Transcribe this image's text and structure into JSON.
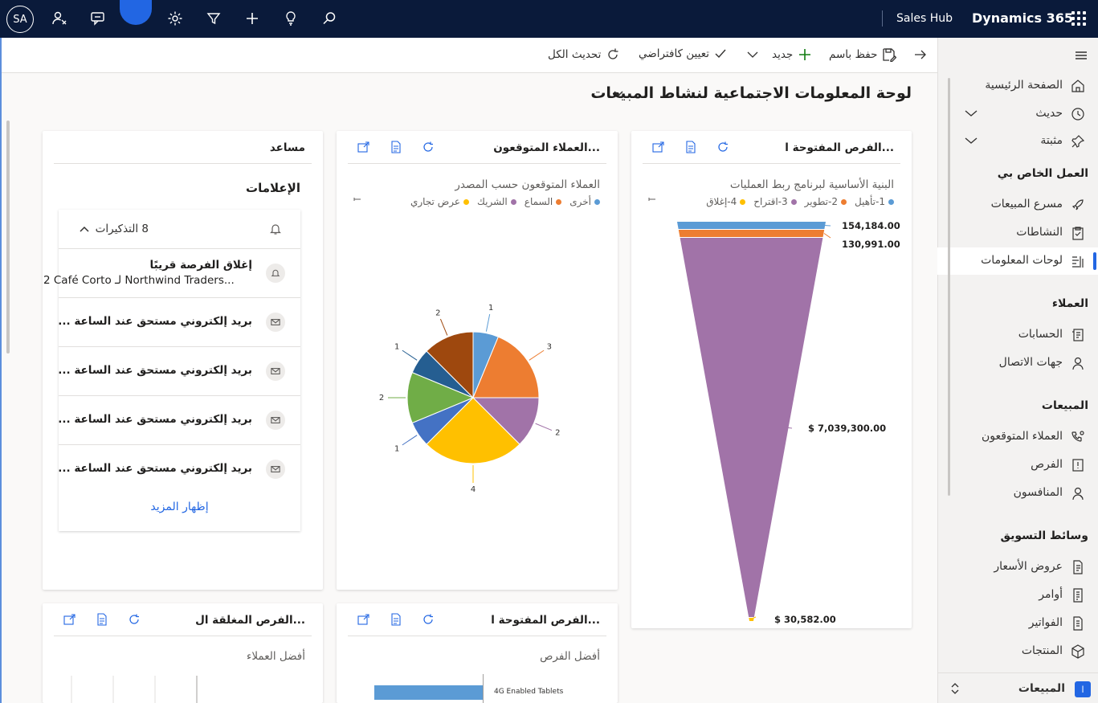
{
  "topbar": {
    "avatar": "SA",
    "app_name": "Sales Hub",
    "brand": "Dynamics 365"
  },
  "commands": {
    "refresh_all": "تحديث الكل",
    "set_default": "تعيين كافتراضي",
    "new": "جديد",
    "save_as": "حفظ باسم"
  },
  "page": {
    "title": "لوحة المعلومات الاجتماعية لنشاط المبيعات"
  },
  "cards": {
    "assistant": {
      "title": "مساعد",
      "section": "الإعلامات",
      "reminders": "8 التذكيرات",
      "items": [
        {
          "title": "إغلاق الفرصة قريبًا",
          "sub": "2 Café Corto لـ Northwind Traders..."
        },
        {
          "title": "بريد إلكتروني مستحق عند الساعة ..."
        },
        {
          "title": "بريد إلكتروني مستحق عند الساعة ..."
        },
        {
          "title": "بريد إلكتروني مستحق عند الساعة ..."
        },
        {
          "title": "بريد إلكتروني مستحق عند الساعة ..."
        }
      ],
      "show_more": "إظهار المزيد"
    },
    "leads": {
      "title": "العملاء المتوقعون...",
      "subtitle": "العملاء المتوقعون حسب المصدر"
    },
    "pipeline": {
      "title": "الفرص المفتوحة ا...",
      "subtitle": "البنية الأساسية لبرنامج ربط العمليات"
    },
    "closed_opps": {
      "title": "الفرص المغلقة ال...",
      "subtitle": "أفضل العملاء"
    },
    "open_opps": {
      "title": "الفرص المفتوحة ا...",
      "subtitle": "أفضل الفرص"
    }
  },
  "chart_data": [
    {
      "type": "pie",
      "legend": [
        "أخرى",
        "السماع",
        "الشريك",
        "عرض تجاري"
      ],
      "legend_colors": [
        "#5b9bd5",
        "#ed7d31",
        "#a173a8",
        "#ffc000"
      ],
      "slices": [
        {
          "value": 1,
          "color": "#5b9bd5"
        },
        {
          "value": 3,
          "color": "#ed7d31"
        },
        {
          "value": 2,
          "color": "#a173a8"
        },
        {
          "value": 4,
          "color": "#ffc000"
        },
        {
          "value": 1,
          "color": "#4472c4"
        },
        {
          "value": 2,
          "color": "#70ad47"
        },
        {
          "value": 1,
          "color": "#255e91"
        },
        {
          "value": 2,
          "color": "#9e480e"
        }
      ]
    },
    {
      "type": "funnel",
      "legend": [
        "1-تأهيل",
        "2-تطوير",
        "3-اقتراح",
        "4-إغلاق"
      ],
      "legend_colors": [
        "#5b9bd5",
        "#ed7d31",
        "#a173a8",
        "#ffc000"
      ],
      "stages": [
        {
          "label": "154,184.00",
          "value": 154184,
          "color": "#5b9bd5"
        },
        {
          "label": "130,991.00",
          "value": 130991,
          "color": "#ed7d31"
        },
        {
          "label": "$ 7,039,300.00",
          "value": 7039300,
          "color": "#a173a8"
        },
        {
          "label": "$ 30,582.00",
          "value": 30582,
          "color": "#ffc000"
        }
      ]
    },
    {
      "type": "bar",
      "categories": [
        "4G Enabled Tablets"
      ],
      "color": "#5b9bd5"
    }
  ],
  "sidebar": {
    "home": "الصفحة الرئيسية",
    "recent": "حديث",
    "pinned": "مثبتة",
    "my_work": "العمل الخاص بي",
    "accelerator": "مسرع المبيعات",
    "activities": "النشاطات",
    "dashboards": "لوحات المعلومات",
    "customers": "العملاء",
    "accounts": "الحسابات",
    "contacts": "جهات الاتصال",
    "sales": "المبيعات",
    "leads": "العملاء المتوقعون",
    "opportunities": "الفرص",
    "competitors": "المنافسون",
    "collateral": "وسائط التسويق",
    "quotes": "عروض الأسعار",
    "orders": "أوامر",
    "invoices": "الفواتير",
    "products": "المنتجات",
    "area": "المبيعات",
    "area_badge": "ا"
  }
}
